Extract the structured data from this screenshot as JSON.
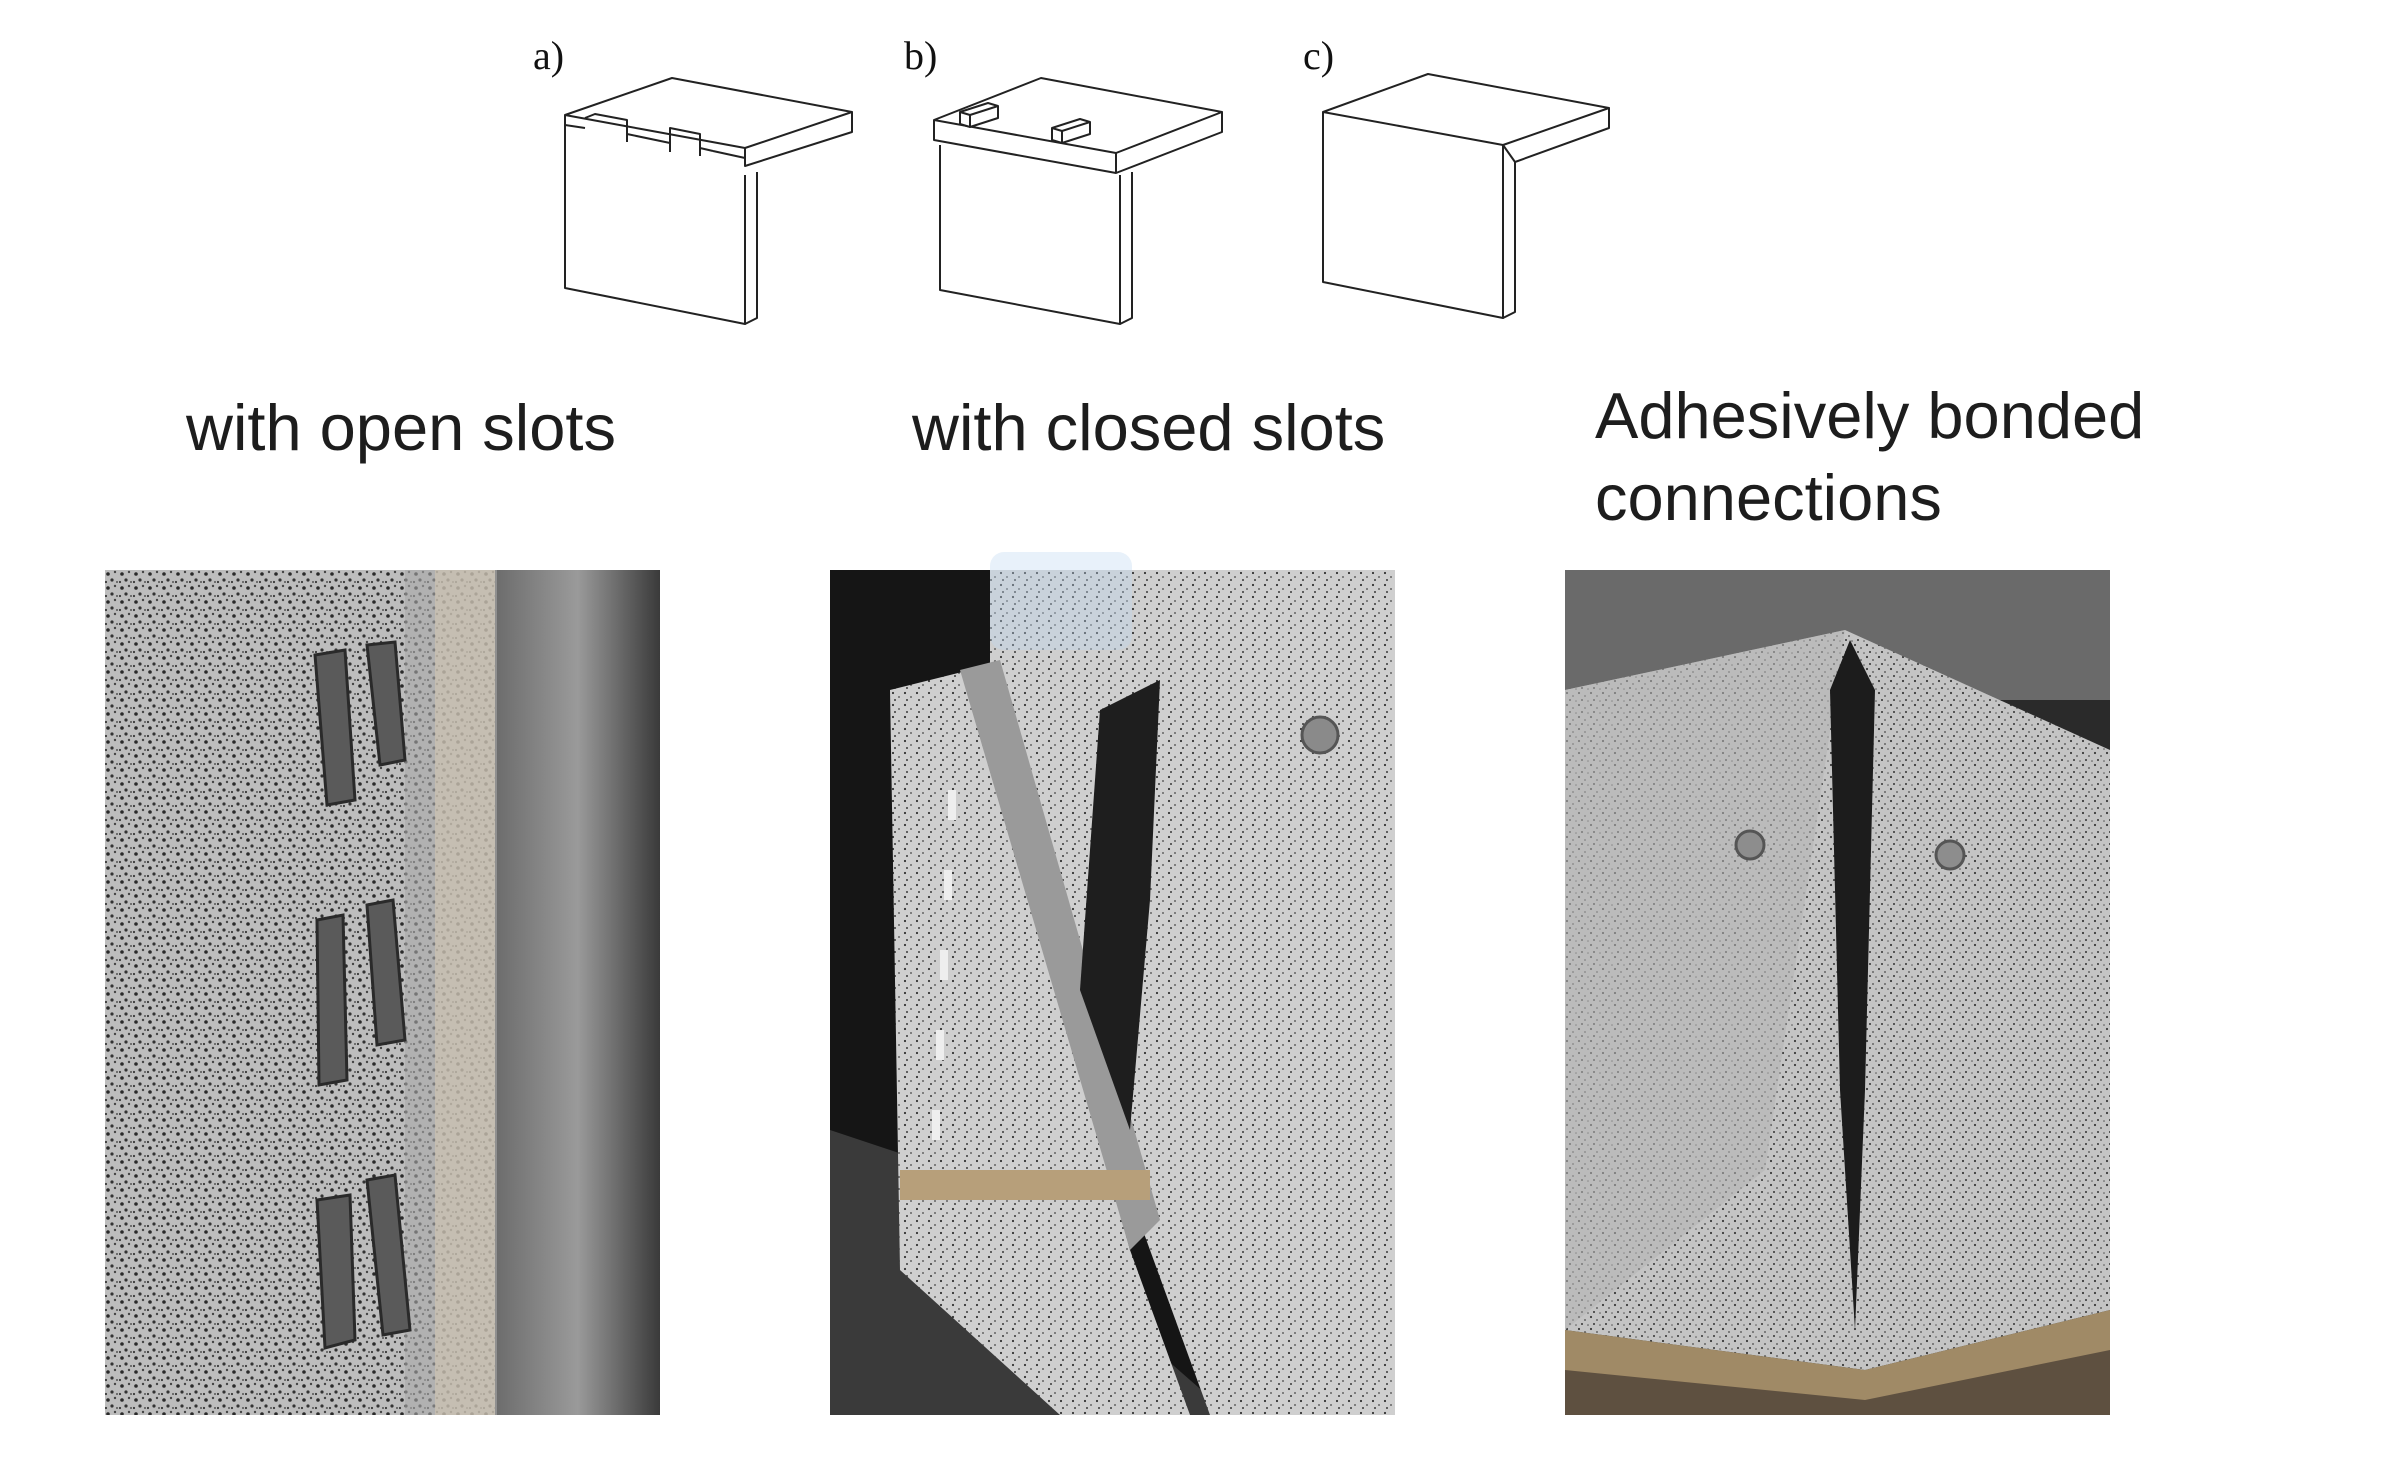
{
  "panels": [
    {
      "letter": "a)",
      "caption": "with open slots"
    },
    {
      "letter": "b)",
      "caption": "with closed slots"
    },
    {
      "letter": "c)",
      "caption_lines": [
        "Adhesively bonded",
        "connections"
      ]
    }
  ],
  "colors": {
    "line": "#222222",
    "text": "#1d1d1d",
    "overlay": "#bed7f0"
  }
}
